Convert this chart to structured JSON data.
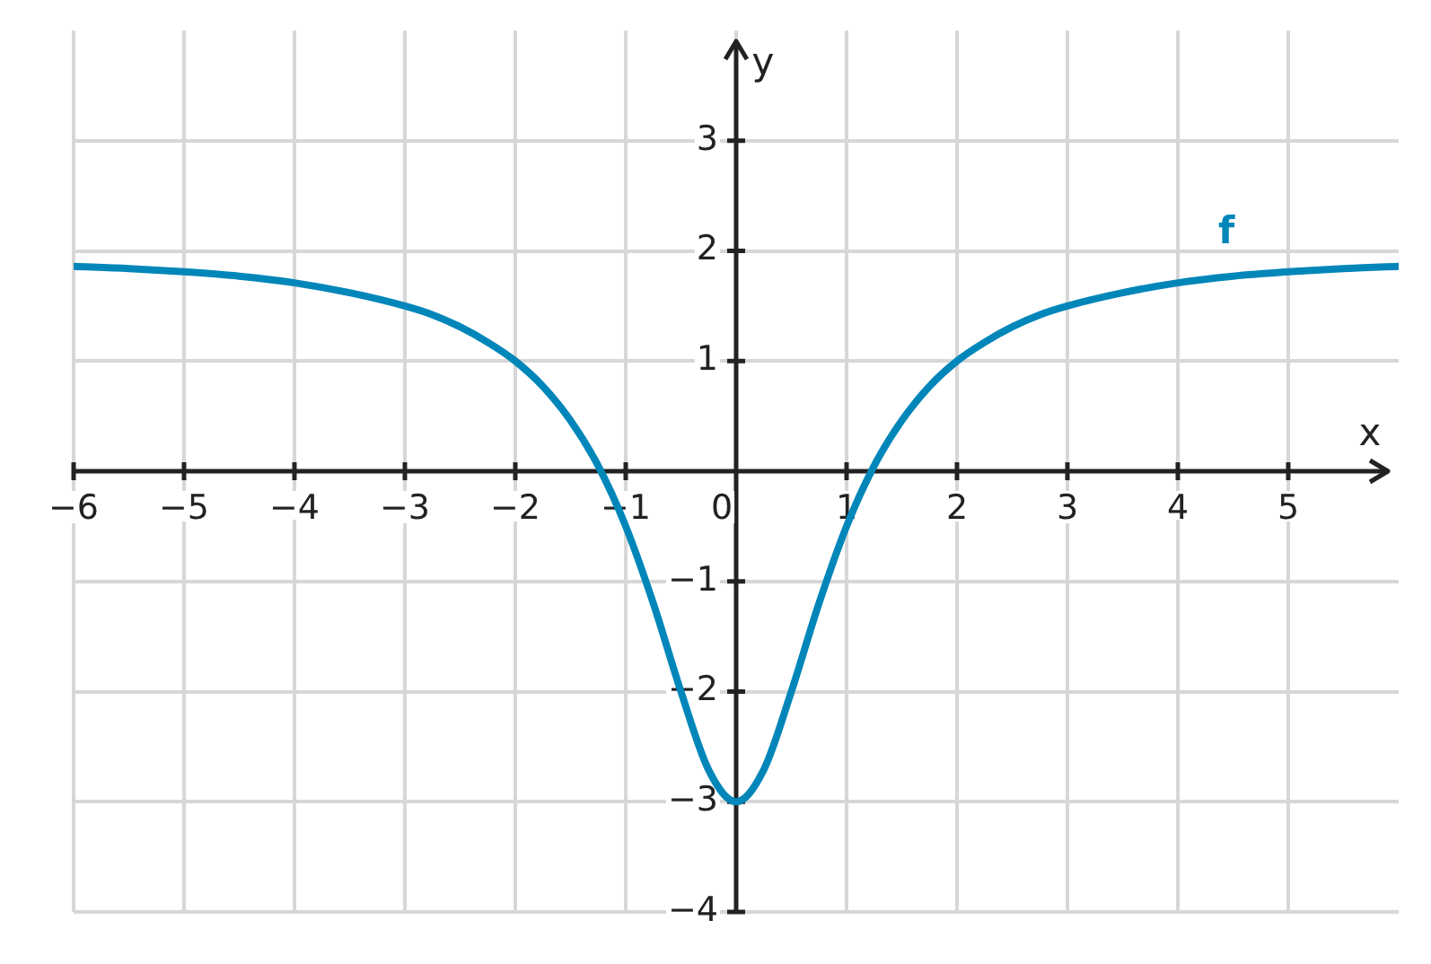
{
  "chart_data": {
    "type": "line",
    "xlabel": "x",
    "ylabel": "y",
    "x": [
      -6,
      -5.5,
      -5,
      -4.5,
      -4,
      -3.5,
      -3,
      -2.75,
      -2.5,
      -2.25,
      -2,
      -1.75,
      -1.5,
      -1.25,
      -1,
      -0.75,
      -0.5,
      -0.25,
      0,
      0.25,
      0.5,
      0.75,
      1,
      1.25,
      1.5,
      1.75,
      2,
      2.25,
      2.5,
      2.75,
      3,
      3.5,
      4,
      4.5,
      5,
      5.5,
      6
    ],
    "series": [
      {
        "name": "f",
        "color": "#0086b9",
        "values": [
          1.86,
          1.84,
          1.81,
          1.77,
          1.71,
          1.62,
          1.5,
          1.42,
          1.31,
          1.17,
          1.0,
          0.77,
          0.46,
          0.05,
          -0.5,
          -1.2,
          -2.0,
          -2.71,
          -3.0,
          -2.71,
          -2.0,
          -1.2,
          -0.5,
          0.05,
          0.46,
          0.77,
          1.0,
          1.17,
          1.31,
          1.42,
          1.5,
          1.62,
          1.71,
          1.77,
          1.81,
          1.84,
          1.86
        ]
      }
    ],
    "xlim": [
      -6,
      6
    ],
    "ylim": [
      -4,
      4
    ],
    "xticks": [
      {
        "value": -6,
        "label": "−6"
      },
      {
        "value": -5,
        "label": "−5"
      },
      {
        "value": -4,
        "label": "−4"
      },
      {
        "value": -3,
        "label": "−3"
      },
      {
        "value": -2,
        "label": "−2"
      },
      {
        "value": -1,
        "label": "−1"
      },
      0,
      1,
      2,
      3,
      4,
      5
    ],
    "yticks": [
      {
        "value": -4,
        "label": "−4"
      },
      {
        "value": -3,
        "label": "−3"
      },
      {
        "value": -2,
        "label": "−2"
      },
      {
        "value": -1,
        "label": "−1"
      },
      1,
      2,
      3
    ],
    "grid": true
  }
}
